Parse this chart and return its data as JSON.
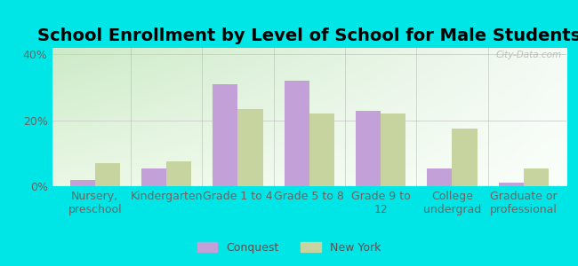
{
  "title": "School Enrollment by Level of School for Male Students",
  "categories": [
    "Nursery,\npreschool",
    "Kindergarten",
    "Grade 1 to 4",
    "Grade 5 to 8",
    "Grade 9 to\n12",
    "College\nundergrad",
    "Graduate or\nprofessional"
  ],
  "conquest_values": [
    2.0,
    5.5,
    31.0,
    32.0,
    23.0,
    5.5,
    1.0
  ],
  "newyork_values": [
    7.0,
    7.5,
    23.5,
    22.0,
    22.0,
    17.5,
    5.5
  ],
  "conquest_color": "#c4a0d8",
  "newyork_color": "#c8d4a0",
  "background_color": "#00e5e5",
  "ylim": [
    0,
    42
  ],
  "yticks": [
    0,
    20,
    40
  ],
  "ytick_labels": [
    "0%",
    "20%",
    "40%"
  ],
  "title_fontsize": 14,
  "tick_fontsize": 9,
  "legend_labels": [
    "Conquest",
    "New York"
  ],
  "bar_width": 0.35,
  "watermark": "City-Data.com"
}
